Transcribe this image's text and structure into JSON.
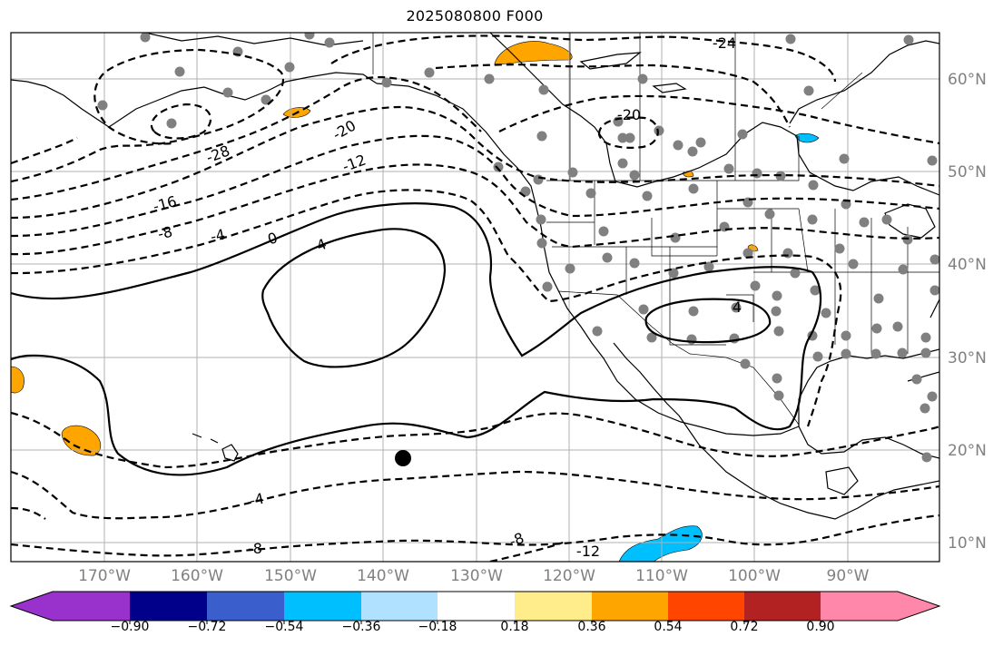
{
  "title": "2025080800 F000",
  "lon_labels": [
    "170°W",
    "160°W",
    "150°W",
    "140°W",
    "130°W",
    "120°W",
    "110°W",
    "100°W",
    "90°W"
  ],
  "lat_labels": [
    "60°N",
    "50°N",
    "40°N",
    "30°N",
    "20°N",
    "10°N"
  ],
  "contour_labels": [
    "-28",
    "-24",
    "-20",
    "-20",
    "-16",
    "-12",
    "-12",
    "-8",
    "-8",
    "-8",
    "-4",
    "-4",
    "0",
    "4",
    "4"
  ],
  "colorbar": {
    "ticks": [
      "−0.90",
      "−0.72",
      "−0.54",
      "−0.36",
      "−0.18",
      "0.18",
      "0.36",
      "0.54",
      "0.72",
      "0.90"
    ],
    "colors": [
      "#9932cc",
      "#00008b",
      "#3a5fcd",
      "#00bfff",
      "#b0e2ff",
      "#ffffff",
      "#ffec8b",
      "#ffa500",
      "#ff4500",
      "#b22222",
      "#ff88aa"
    ]
  },
  "colors": {
    "positive_fill": "#ffa500",
    "negative_fill": "#00bfff",
    "station": "#808080",
    "grid": "#b0b0b0"
  },
  "marker_label": "black-dot-marker"
}
